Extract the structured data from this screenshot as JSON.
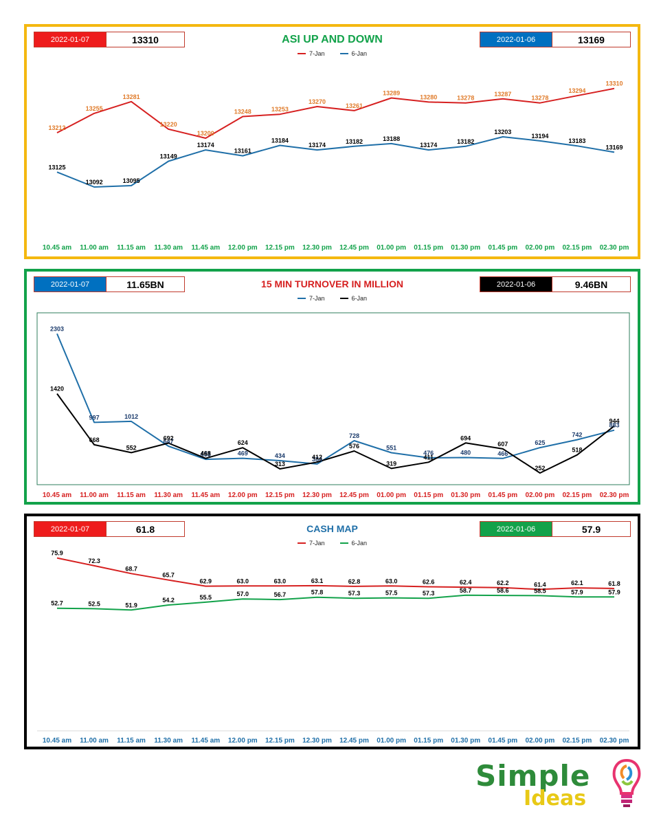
{
  "panels": [
    {
      "kpi_left": {
        "date": "2022-01-07",
        "value": "13310",
        "color": "#ee1c1c"
      },
      "kpi_right": {
        "date": "2022-01-06",
        "value": "13169",
        "color": "#0070c0"
      },
      "title": "ASI UP AND DOWN",
      "title_color": "#12a24a",
      "tick_color": "#12a24a"
    },
    {
      "kpi_left": {
        "date": "2022-01-07",
        "value": "11.65BN",
        "color": "#0070c0"
      },
      "kpi_right": {
        "date": "2022-01-06",
        "value": "9.46BN",
        "color": "#000000"
      },
      "title": "15 MIN TURNOVER IN MILLION",
      "title_color": "#d62020",
      "tick_color": "#d62020"
    },
    {
      "kpi_left": {
        "date": "2022-01-07",
        "value": "61.8",
        "color": "#ee1c1c"
      },
      "kpi_right": {
        "date": "2022-01-06",
        "value": "57.9",
        "color": "#12a24a"
      },
      "title": "CASH MAP",
      "title_color": "#1f6fa8",
      "tick_color": "#1f6fa8"
    }
  ],
  "chart_data": [
    {
      "type": "line",
      "title": "ASI UP AND DOWN",
      "categories": [
        "10.45 am",
        "11.00 am",
        "11.15 am",
        "11.30 am",
        "11.45 am",
        "12.00 pm",
        "12.15 pm",
        "12.30 pm",
        "12.45 pm",
        "01.00 pm",
        "01.15 pm",
        "01.30 pm",
        "01.45 pm",
        "02.00 pm",
        "02.15 pm",
        "02.30 pm"
      ],
      "series": [
        {
          "name": "7-Jan",
          "color": "#d62020",
          "label_color": "#e07b2a",
          "values": [
            13212,
            13255,
            13281,
            13220,
            13200,
            13248,
            13253,
            13270,
            13261,
            13289,
            13280,
            13278,
            13287,
            13278,
            13294,
            13310
          ]
        },
        {
          "name": "6-Jan",
          "color": "#1f6fa8",
          "label_color": "#000000",
          "values": [
            13125,
            13092,
            13095,
            13149,
            13174,
            13161,
            13184,
            13174,
            13182,
            13188,
            13174,
            13182,
            13203,
            13194,
            13183,
            13169
          ]
        }
      ],
      "ylim": [
        12990,
        13340
      ],
      "grid": false,
      "legend": "top"
    },
    {
      "type": "line",
      "title": "15 MIN TURNOVER IN MILLION",
      "categories": [
        "10.45 am",
        "11.00 am",
        "11.15 am",
        "11.30 am",
        "11.45 am",
        "12.00 pm",
        "12.15 pm",
        "12.30 pm",
        "12.45 pm",
        "01.00 pm",
        "01.15 pm",
        "01.30 pm",
        "01.45 pm",
        "02.00 pm",
        "02.15 pm",
        "02.30 pm"
      ],
      "series": [
        {
          "name": "7-Jan",
          "color": "#1f6fa8",
          "label_color": "#1a3a6b",
          "values": [
            2303,
            997,
            1012,
            647,
            453,
            469,
            434,
            384,
            728,
            551,
            476,
            480,
            466,
            625,
            742,
            883
          ]
        },
        {
          "name": "6-Jan",
          "color": "#000000",
          "label_color": "#000000",
          "values": [
            1420,
            668,
            552,
            692,
            468,
            624,
            313,
            412,
            576,
            319,
            411,
            694,
            607,
            252,
            518,
            944
          ]
        }
      ],
      "ylim": [
        100,
        2550
      ],
      "grid": false,
      "legend": "top"
    },
    {
      "type": "line",
      "title": "CASH MAP",
      "categories": [
        "10.45 am",
        "11.00 am",
        "11.15 am",
        "11.30 am",
        "11.45 am",
        "12.00 pm",
        "12.15 pm",
        "12.30 pm",
        "12.45 pm",
        "01.00 pm",
        "01.15 pm",
        "01.30 pm",
        "01.45 pm",
        "02.00 pm",
        "02.15 pm",
        "02.30 pm"
      ],
      "series": [
        {
          "name": "7-Jan",
          "color": "#d62020",
          "label_color": "#000000",
          "values": [
            75.9,
            72.3,
            68.7,
            65.7,
            62.9,
            63.0,
            63.0,
            63.1,
            62.8,
            63.0,
            62.6,
            62.4,
            62.2,
            61.4,
            62.1,
            61.8
          ]
        },
        {
          "name": "6-Jan",
          "color": "#12a24a",
          "label_color": "#000000",
          "values": [
            52.7,
            52.5,
            51.9,
            54.2,
            55.5,
            57.0,
            56.7,
            57.8,
            57.3,
            57.5,
            57.3,
            58.7,
            58.6,
            58.5,
            57.9,
            57.9
          ]
        }
      ],
      "ylim": [
        0,
        84
      ],
      "grid": false,
      "legend": "top"
    }
  ],
  "logo": {
    "line1": "Simple",
    "line2": "Ideas"
  }
}
